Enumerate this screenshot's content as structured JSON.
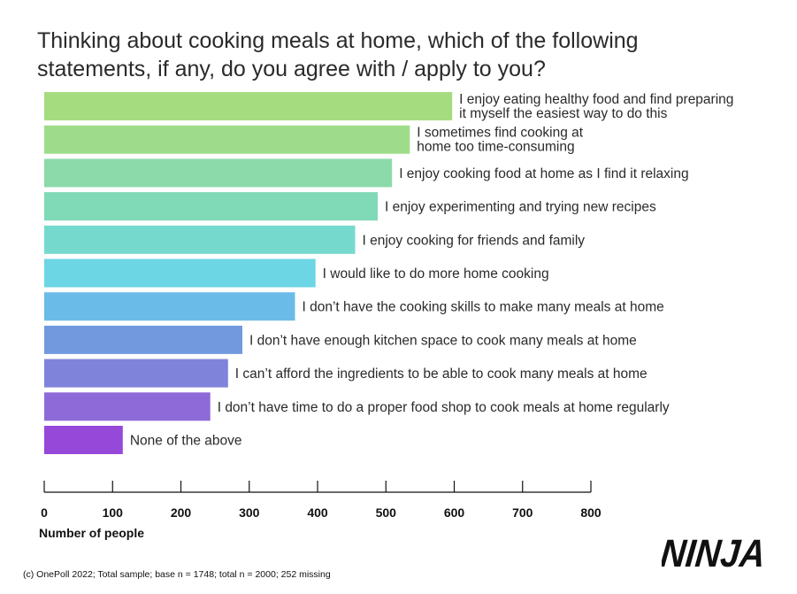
{
  "title_lines": [
    "Thinking about cooking meals at home, which of the following",
    "statements, if any, do you agree with / apply to you?"
  ],
  "footnote": "(c) OnePoll 2022; Total sample; base n = 1748; total n = 2000; 252 missing",
  "logo_text": "NINJA",
  "chart_data": {
    "type": "bar",
    "orientation": "horizontal",
    "title": "Thinking about cooking meals at home, which of the following statements, if any, do you agree with / apply to you?",
    "xlabel": "Number of people",
    "ylabel": "",
    "xlim": [
      0,
      800
    ],
    "xticks": [
      0,
      100,
      200,
      300,
      400,
      500,
      600,
      700,
      800
    ],
    "grid": false,
    "categories": [
      [
        "I enjoy eating healthy food and find preparing",
        "it myself the easiest way to do this"
      ],
      [
        "I sometimes find cooking at",
        "home too time-consuming"
      ],
      [
        "I enjoy cooking food at home as I find it relaxing"
      ],
      [
        "I enjoy experimenting and trying new recipes"
      ],
      [
        "I enjoy cooking for friends and family"
      ],
      [
        "I would like to do more home cooking"
      ],
      [
        "I don’t have the cooking skills to make many meals at home"
      ],
      [
        "I don’t have enough kitchen space to cook many meals at home"
      ],
      [
        "I can’t afford the ingredients to be able to cook many meals at home"
      ],
      [
        "I don’t have time to do a proper food shop to cook meals at home regularly"
      ],
      [
        "None of the above"
      ]
    ],
    "values": [
      597,
      535,
      509,
      488,
      455,
      397,
      367,
      290,
      269,
      243,
      115
    ],
    "colors": [
      "#a5dc80",
      "#9edc8b",
      "#8cdaa9",
      "#80d9b7",
      "#75d9ce",
      "#6cd6e4",
      "#6bbbe8",
      "#7299de",
      "#7f83d9",
      "#8e6ad8",
      "#9648d8"
    ]
  }
}
